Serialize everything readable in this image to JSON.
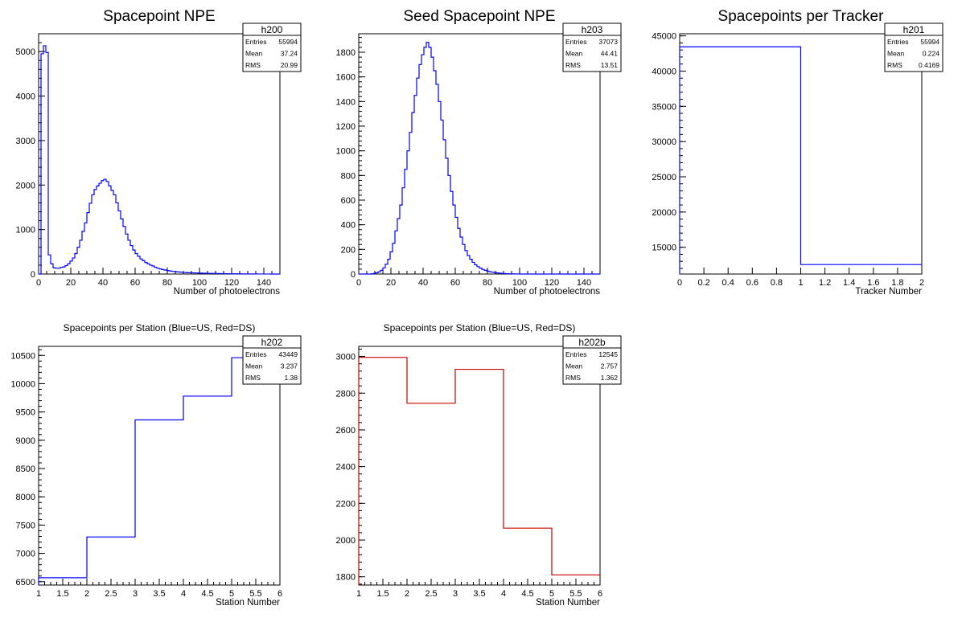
{
  "chart_data": [
    {
      "type": "histogram",
      "title": "Spacepoint NPE",
      "xlabel": "Number of photoelectrons",
      "ylabel": "",
      "xlim": [
        0,
        150
      ],
      "ylim": [
        0,
        5400
      ],
      "xticks": [
        0,
        20,
        40,
        60,
        80,
        100,
        120,
        140
      ],
      "yticks": [
        0,
        1000,
        2000,
        3000,
        4000,
        5000
      ],
      "bin_width": 1.5,
      "line_color": "#0000ff",
      "values": [
        0,
        4950,
        5130,
        4980,
        430,
        230,
        140,
        130,
        130,
        150,
        160,
        190,
        230,
        290,
        360,
        460,
        600,
        760,
        960,
        1150,
        1380,
        1590,
        1780,
        1900,
        1980,
        2040,
        2100,
        2130,
        2080,
        1980,
        1880,
        1780,
        1600,
        1420,
        1240,
        1070,
        900,
        760,
        640,
        540,
        460,
        400,
        340,
        300,
        260,
        230,
        200,
        180,
        150,
        130,
        115,
        100,
        90,
        80,
        70,
        60,
        55,
        50,
        45,
        40,
        35,
        32,
        30,
        28,
        26,
        24,
        22,
        20,
        18,
        16,
        15,
        14,
        13,
        12,
        11,
        10,
        9,
        8,
        7,
        6,
        5,
        5,
        4,
        4,
        3,
        3,
        3,
        2,
        2,
        2,
        2,
        1,
        1,
        1,
        1,
        1,
        0,
        0,
        0,
        0
      ],
      "stats": {
        "name": "h200",
        "entries_label": "Entries",
        "entries": "55994",
        "mean_label": "Mean",
        "mean": "37.24",
        "rms_label": "RMS",
        "rms": "20.99"
      }
    },
    {
      "type": "histogram",
      "title": "Seed Spacepoint NPE",
      "xlabel": "Number of photoelectrons",
      "ylabel": "",
      "xlim": [
        0,
        150
      ],
      "ylim": [
        0,
        1950
      ],
      "xticks": [
        0,
        20,
        40,
        60,
        80,
        100,
        120,
        140
      ],
      "yticks": [
        0,
        200,
        400,
        600,
        800,
        1000,
        1200,
        1400,
        1600,
        1800
      ],
      "bin_width": 1.5,
      "line_color": "#0000ff",
      "values": [
        0,
        0,
        0,
        0,
        0,
        2,
        5,
        10,
        18,
        30,
        50,
        80,
        120,
        180,
        250,
        350,
        450,
        560,
        700,
        850,
        1000,
        1150,
        1310,
        1450,
        1590,
        1700,
        1780,
        1840,
        1880,
        1840,
        1760,
        1650,
        1540,
        1400,
        1250,
        1090,
        940,
        800,
        670,
        560,
        460,
        370,
        300,
        240,
        190,
        150,
        120,
        95,
        75,
        60,
        48,
        38,
        30,
        24,
        19,
        15,
        12,
        9,
        7,
        5,
        4,
        3,
        2,
        2,
        1,
        1,
        1,
        0,
        0,
        0,
        0,
        0,
        0,
        0,
        0,
        0,
        0,
        0,
        0,
        0,
        0,
        0,
        0,
        0,
        0,
        0,
        0,
        0,
        0,
        0,
        0,
        0,
        0,
        0,
        0,
        0,
        0,
        0,
        0,
        0
      ],
      "stats": {
        "name": "h203",
        "entries_label": "Entries",
        "entries": "37073",
        "mean_label": "Mean",
        "mean": "44.41",
        "rms_label": "RMS",
        "rms": "13.51"
      }
    },
    {
      "type": "histogram",
      "title": "Spacepoints per Tracker",
      "xlabel": "Tracker Number",
      "ylabel": "",
      "xlim": [
        0,
        2
      ],
      "ylim": [
        11200,
        45300
      ],
      "xticks": [
        0,
        0.2,
        0.4,
        0.6,
        0.8,
        1,
        1.2,
        1.4,
        1.6,
        1.8,
        2
      ],
      "yticks": [
        15000,
        20000,
        25000,
        30000,
        35000,
        40000,
        45000
      ],
      "edges": [
        0,
        1,
        2
      ],
      "line_color": "#0000ff",
      "values": [
        43449,
        12545
      ],
      "stats": {
        "name": "h201",
        "entries_label": "Entries",
        "entries": "55994",
        "mean_label": "Mean",
        "mean": "0.224",
        "rms_label": "RMS",
        "rms": "0.4169"
      }
    },
    {
      "type": "histogram",
      "title": "Spacepoints per Station (Blue=US, Red=DS)",
      "xlabel": "Station Number",
      "ylabel": "",
      "xlim": [
        1,
        6
      ],
      "ylim": [
        6440,
        10660
      ],
      "xticks": [
        1,
        1.5,
        2,
        2.5,
        3,
        3.5,
        4,
        4.5,
        5,
        5.5,
        6
      ],
      "yticks": [
        6500,
        7000,
        7500,
        8000,
        8500,
        9000,
        9500,
        10000,
        10500
      ],
      "edges": [
        1,
        2,
        3,
        4,
        5,
        6
      ],
      "line_color": "#0000ff",
      "values": [
        6570,
        7290,
        9360,
        9780,
        10460
      ],
      "stats": {
        "name": "h202",
        "entries_label": "Entries",
        "entries": "43449",
        "mean_label": "Mean",
        "mean": "3.237",
        "rms_label": "RMS",
        "rms": "1.38"
      }
    },
    {
      "type": "histogram",
      "title": "Spacepoints per Station (Blue=US, Red=DS)",
      "xlabel": "Station Number",
      "ylabel": "",
      "xlim": [
        1,
        6
      ],
      "ylim": [
        1755,
        3055
      ],
      "xticks": [
        1,
        1.5,
        2,
        2.5,
        3,
        3.5,
        4,
        4.5,
        5,
        5.5,
        6
      ],
      "yticks": [
        1800,
        2000,
        2200,
        2400,
        2600,
        2800,
        3000
      ],
      "edges": [
        1,
        2,
        3,
        4,
        5,
        6
      ],
      "line_color": "#cc0000",
      "values": [
        2995,
        2745,
        2930,
        2065,
        1810
      ],
      "stats": {
        "name": "h202b",
        "entries_label": "Entries",
        "entries": "12545",
        "mean_label": "Mean",
        "mean": "2.757",
        "rms_label": "RMS",
        "rms": "1.362"
      }
    }
  ]
}
